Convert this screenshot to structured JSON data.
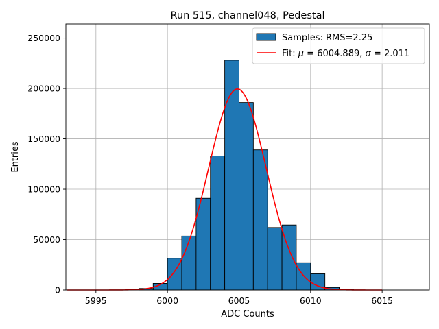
{
  "chart_data": {
    "type": "bar",
    "title": "Run 515, channel048, Pedestal",
    "xlabel": "ADC Counts",
    "ylabel": "Entries",
    "xlim": [
      5992.9,
      6018.3
    ],
    "ylim": [
      0,
      264000
    ],
    "grid": true,
    "legend_position": "top-right",
    "xticks": [
      5995,
      6000,
      6005,
      6010,
      6015
    ],
    "xtick_labels": [
      "5995",
      "6000",
      "6005",
      "6010",
      "6015"
    ],
    "yticks": [
      0,
      50000,
      100000,
      150000,
      200000,
      250000
    ],
    "ytick_labels": [
      "0",
      "50000",
      "100000",
      "150000",
      "200000",
      "250000"
    ],
    "histogram": {
      "name": "Samples: RMS=2.25",
      "color": "#1f77b4",
      "edge_color": "#000000",
      "bin_width": 1,
      "bins": [
        {
          "left": 5993,
          "count": 0
        },
        {
          "left": 5994,
          "count": 0
        },
        {
          "left": 5995,
          "count": 0
        },
        {
          "left": 5996,
          "count": 0
        },
        {
          "left": 5997,
          "count": 0
        },
        {
          "left": 5998,
          "count": 1500
        },
        {
          "left": 5999,
          "count": 6500
        },
        {
          "left": 6000,
          "count": 31500
        },
        {
          "left": 6001,
          "count": 53500
        },
        {
          "left": 6002,
          "count": 91000
        },
        {
          "left": 6003,
          "count": 133000
        },
        {
          "left": 6004,
          "count": 228000
        },
        {
          "left": 6005,
          "count": 186000
        },
        {
          "left": 6006,
          "count": 139000
        },
        {
          "left": 6007,
          "count": 62000
        },
        {
          "left": 6008,
          "count": 64500
        },
        {
          "left": 6009,
          "count": 27000
        },
        {
          "left": 6010,
          "count": 16000
        },
        {
          "left": 6011,
          "count": 2500
        },
        {
          "left": 6012,
          "count": 800
        },
        {
          "left": 6013,
          "count": 0
        },
        {
          "left": 6014,
          "count": 0
        },
        {
          "left": 6015,
          "count": 0
        },
        {
          "left": 6016,
          "count": 0
        },
        {
          "left": 6017,
          "count": 0
        }
      ]
    },
    "fit": {
      "name_prefix": "Fit: ",
      "mu_symbol": "μ",
      "sigma_symbol": "σ",
      "mu_label": "6004.889",
      "sigma_label": "2.011",
      "mu": 6004.889,
      "sigma": 2.011,
      "amplitude": 199500,
      "x_range": [
        5993,
        6015
      ],
      "color": "#ff0000"
    }
  }
}
